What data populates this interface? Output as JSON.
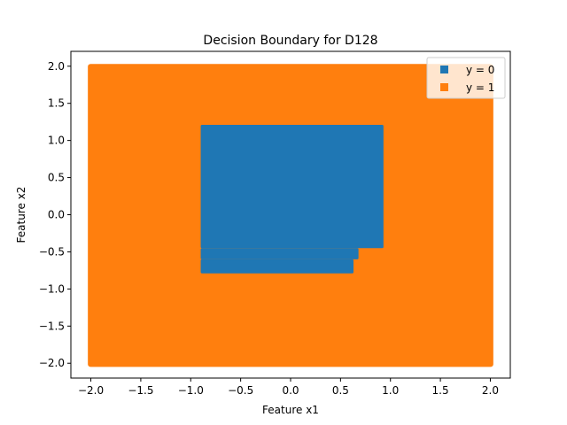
{
  "chart_data": {
    "type": "scatter",
    "title": "Decision Boundary for D128",
    "xlabel": "Feature x1",
    "ylabel": "Feature x2",
    "xlim": [
      -2.2,
      2.2
    ],
    "ylim": [
      -2.2,
      2.2
    ],
    "xticks": [
      -2.0,
      -1.5,
      -1.0,
      -0.5,
      0.0,
      0.5,
      1.0,
      1.5,
      2.0
    ],
    "xtick_labels": [
      "−2.0",
      "−1.5",
      "−1.0",
      "−0.5",
      "0.0",
      "0.5",
      "1.0",
      "1.5",
      "2.0"
    ],
    "yticks": [
      -2.0,
      -1.5,
      -1.0,
      -0.5,
      0.0,
      0.5,
      1.0,
      1.5,
      2.0
    ],
    "ytick_labels": [
      "−2.0",
      "−1.5",
      "−1.0",
      "−0.5",
      "0.0",
      "0.5",
      "1.0",
      "1.5",
      "2.0"
    ],
    "grid": false,
    "legend_position": "top-right",
    "series": [
      {
        "name": "y = 0",
        "color": "#1f77b4",
        "regions": [
          {
            "x": [
              -0.9,
              0.93
            ],
            "y": [
              -0.45,
              1.21
            ]
          },
          {
            "x": [
              -0.9,
              0.68
            ],
            "y": [
              -0.6,
              -0.45
            ]
          },
          {
            "x": [
              -0.9,
              0.63
            ],
            "y": [
              -0.79,
              -0.6
            ]
          }
        ]
      },
      {
        "name": "y = 1",
        "color": "#ff7f0e",
        "regions": [
          {
            "x": [
              -2.03,
              2.03
            ],
            "y": [
              -2.05,
              2.03
            ]
          }
        ]
      }
    ]
  }
}
